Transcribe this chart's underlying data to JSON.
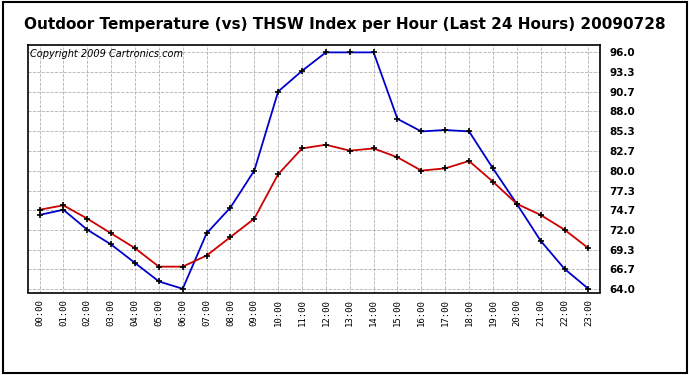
{
  "title": "Outdoor Temperature (vs) THSW Index per Hour (Last 24 Hours) 20090728",
  "copyright": "Copyright 2009 Cartronics.com",
  "x_labels": [
    "00:00",
    "01:00",
    "02:00",
    "03:00",
    "04:00",
    "05:00",
    "06:00",
    "07:00",
    "08:00",
    "09:00",
    "10:00",
    "11:00",
    "12:00",
    "13:00",
    "14:00",
    "15:00",
    "16:00",
    "17:00",
    "18:00",
    "19:00",
    "20:00",
    "21:00",
    "22:00",
    "23:00"
  ],
  "temp_red": [
    74.7,
    75.3,
    73.5,
    71.5,
    69.5,
    67.0,
    67.0,
    68.5,
    71.0,
    73.5,
    79.5,
    83.0,
    83.5,
    82.7,
    83.0,
    81.8,
    80.0,
    80.3,
    81.3,
    78.5,
    75.5,
    74.0,
    72.0,
    69.5
  ],
  "thsw_blue": [
    74.0,
    74.7,
    72.0,
    70.0,
    67.5,
    65.0,
    64.0,
    71.5,
    75.0,
    80.0,
    90.7,
    93.5,
    96.0,
    96.0,
    96.0,
    87.0,
    85.3,
    85.5,
    85.3,
    80.3,
    75.5,
    70.5,
    66.7,
    64.0
  ],
  "y_ticks": [
    64.0,
    66.7,
    69.3,
    72.0,
    74.7,
    77.3,
    80.0,
    82.7,
    85.3,
    88.0,
    90.7,
    93.3,
    96.0
  ],
  "ylim": [
    63.5,
    97.0
  ],
  "bg_color": "#ffffff",
  "plot_bg_color": "#ffffff",
  "grid_color": "#aaaaaa",
  "red_color": "#cc0000",
  "blue_color": "#0000cc",
  "title_fontsize": 11,
  "copyright_fontsize": 7
}
